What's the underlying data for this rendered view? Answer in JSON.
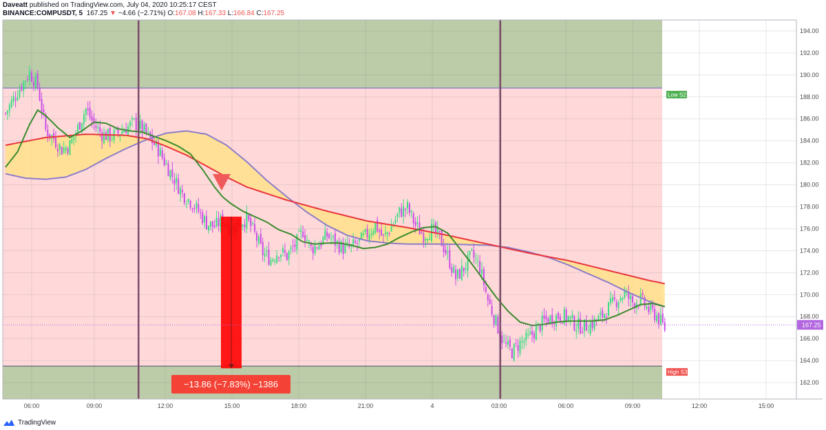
{
  "header": {
    "publisher": "Daveatt",
    "published_text": "published on TradingView.com, July 04, 2020 10:25:17 CEST",
    "symbol": "BINANCE:COMPUSDT, 5",
    "last": "167.25",
    "change": "−4.66 (−2.71%)",
    "o_label": "O:",
    "o_value": "167.08",
    "h_label": "H:",
    "h_value": "167.33",
    "l_label": "L:",
    "l_value": "166.84",
    "c_label": "C:",
    "c_value": "167.25"
  },
  "footer": {
    "brand": "TradingView"
  },
  "colors": {
    "green_zone": "#bccba8",
    "pink_zone": "#ffd9d9",
    "bull": "#3ddc84",
    "bear": "#c94ce6",
    "red_ma": "#e8323c",
    "purple_ma": "#8c7cc9",
    "green_ma": "#3a8a2e",
    "fill": "#ffe08a",
    "session_line": "#7b4a6a"
  },
  "chart_data": {
    "type": "candlestick",
    "ylim": [
      160.5,
      195
    ],
    "y_ticks": [
      "194.00",
      "192.00",
      "190.00",
      "188.00",
      "186.00",
      "184.00",
      "182.00",
      "180.00",
      "178.00",
      "176.00",
      "174.00",
      "172.00",
      "170.00",
      "168.00",
      "166.00",
      "164.00",
      "162.00"
    ],
    "x_ticks": [
      "06:00",
      "09:00",
      "12:00",
      "15:00",
      "18:00",
      "21:00",
      "4",
      "03:00",
      "06:00",
      "09:00",
      "12:00",
      "15:00"
    ],
    "last_price": "167.25",
    "levels": [
      {
        "name": "Low S2",
        "value": 188.8
      },
      {
        "name": "High S3",
        "value": 163.5
      }
    ],
    "measure": {
      "text": "−13.86 (−7.83%) −1386",
      "from": 177.1,
      "to": 163.3,
      "time_label": "15:00"
    },
    "signal": {
      "type": "sell",
      "price": 180.1
    },
    "price_path": [
      [
        0,
        186.5
      ],
      [
        6,
        188.5
      ],
      [
        12,
        190.2
      ],
      [
        16,
        189
      ],
      [
        20,
        185
      ],
      [
        24,
        184.2
      ],
      [
        28,
        183.2
      ],
      [
        32,
        183.6
      ],
      [
        36,
        185.2
      ],
      [
        40,
        186.9
      ],
      [
        44,
        185.5
      ],
      [
        48,
        184.6
      ],
      [
        52,
        184.4
      ],
      [
        56,
        184.7
      ],
      [
        60,
        185.2
      ],
      [
        64,
        185.6
      ],
      [
        68,
        185.1
      ],
      [
        72,
        184.2
      ],
      [
        76,
        183.2
      ],
      [
        80,
        181.8
      ],
      [
        84,
        180.5
      ],
      [
        88,
        179.2
      ],
      [
        92,
        178.5
      ],
      [
        96,
        177.6
      ],
      [
        100,
        176.5
      ],
      [
        104,
        176.2
      ],
      [
        108,
        176.8
      ],
      [
        112,
        176
      ],
      [
        116,
        176.5
      ],
      [
        120,
        176.9
      ],
      [
        124,
        175.5
      ],
      [
        128,
        173.8
      ],
      [
        132,
        173.2
      ],
      [
        136,
        174
      ],
      [
        140,
        173.5
      ],
      [
        144,
        174.5
      ],
      [
        148,
        175.8
      ],
      [
        152,
        174.2
      ],
      [
        156,
        174.6
      ],
      [
        160,
        175.4
      ],
      [
        164,
        174.8
      ],
      [
        168,
        174.2
      ],
      [
        172,
        174.3
      ],
      [
        176,
        174.8
      ],
      [
        180,
        175.5
      ],
      [
        184,
        176.4
      ],
      [
        188,
        175.1
      ],
      [
        192,
        176.2
      ],
      [
        196,
        177.5
      ],
      [
        200,
        177.9
      ],
      [
        204,
        176.3
      ],
      [
        208,
        175.4
      ],
      [
        212,
        175.9
      ],
      [
        216,
        175.2
      ],
      [
        220,
        173.5
      ],
      [
        224,
        171.5
      ],
      [
        228,
        172.4
      ],
      [
        232,
        173.6
      ],
      [
        236,
        172.5
      ],
      [
        240,
        169.5
      ],
      [
        244,
        167.5
      ],
      [
        248,
        165.5
      ],
      [
        252,
        164.8
      ],
      [
        256,
        165.6
      ],
      [
        260,
        166
      ],
      [
        264,
        166.8
      ],
      [
        268,
        167.6
      ],
      [
        272,
        167.9
      ],
      [
        276,
        168.1
      ],
      [
        280,
        167.9
      ],
      [
        284,
        167.2
      ],
      [
        288,
        167.1
      ],
      [
        292,
        167.4
      ],
      [
        296,
        167.9
      ],
      [
        300,
        168.8
      ],
      [
        304,
        169.5
      ],
      [
        308,
        170.1
      ],
      [
        312,
        169.3
      ],
      [
        316,
        169.5
      ],
      [
        320,
        168.6
      ],
      [
        324,
        168.1
      ],
      [
        328,
        166.9
      ]
    ],
    "red_ma": [
      [
        0,
        183.6
      ],
      [
        20,
        184.3
      ],
      [
        40,
        184.6
      ],
      [
        60,
        184.5
      ],
      [
        70,
        184.2
      ],
      [
        80,
        183.5
      ],
      [
        90,
        182.7
      ],
      [
        100,
        181.7
      ],
      [
        110,
        180.7
      ],
      [
        120,
        179.8
      ],
      [
        140,
        178.6
      ],
      [
        160,
        177.6
      ],
      [
        180,
        176.7
      ],
      [
        200,
        176.1
      ],
      [
        220,
        175.4
      ],
      [
        240,
        174.6
      ],
      [
        260,
        173.8
      ],
      [
        280,
        173.1
      ],
      [
        300,
        172.2
      ],
      [
        320,
        171.3
      ],
      [
        328,
        171
      ]
    ],
    "purple_ma": [
      [
        0,
        181
      ],
      [
        10,
        180.6
      ],
      [
        20,
        180.5
      ],
      [
        30,
        180.7
      ],
      [
        40,
        181.4
      ],
      [
        50,
        182.4
      ],
      [
        60,
        183.3
      ],
      [
        70,
        184.1
      ],
      [
        80,
        184.7
      ],
      [
        90,
        184.9
      ],
      [
        100,
        184.6
      ],
      [
        110,
        183.6
      ],
      [
        120,
        182.1
      ],
      [
        130,
        180.4
      ],
      [
        140,
        178.9
      ],
      [
        150,
        177.5
      ],
      [
        160,
        176.3
      ],
      [
        170,
        175.4
      ],
      [
        180,
        174.9
      ],
      [
        190,
        174.7
      ],
      [
        200,
        174.6
      ],
      [
        220,
        174.6
      ],
      [
        240,
        174.5
      ],
      [
        250,
        174.3
      ],
      [
        260,
        173.9
      ],
      [
        270,
        173.4
      ],
      [
        280,
        172.7
      ],
      [
        290,
        171.9
      ],
      [
        300,
        171.1
      ],
      [
        310,
        170.2
      ],
      [
        320,
        169.4
      ],
      [
        328,
        168.9
      ]
    ],
    "green_ma": [
      [
        0,
        181.6
      ],
      [
        6,
        183
      ],
      [
        12,
        185.5
      ],
      [
        16,
        186.8
      ],
      [
        20,
        186.3
      ],
      [
        26,
        185.2
      ],
      [
        32,
        184.3
      ],
      [
        38,
        184.9
      ],
      [
        44,
        185.7
      ],
      [
        50,
        185.6
      ],
      [
        56,
        185.1
      ],
      [
        62,
        184.9
      ],
      [
        68,
        184.8
      ],
      [
        74,
        184.4
      ],
      [
        80,
        184
      ],
      [
        86,
        183.5
      ],
      [
        92,
        182.8
      ],
      [
        98,
        181.4
      ],
      [
        104,
        179.8
      ],
      [
        108,
        178.9
      ],
      [
        112,
        178.3
      ],
      [
        118,
        177.6
      ],
      [
        124,
        177.1
      ],
      [
        130,
        176.6
      ],
      [
        136,
        175.9
      ],
      [
        142,
        175.5
      ],
      [
        148,
        174.8
      ],
      [
        154,
        174.6
      ],
      [
        160,
        174.7
      ],
      [
        166,
        174.7
      ],
      [
        172,
        174.5
      ],
      [
        178,
        174.2
      ],
      [
        184,
        174.3
      ],
      [
        190,
        174.6
      ],
      [
        196,
        175.2
      ],
      [
        202,
        175.7
      ],
      [
        208,
        176.1
      ],
      [
        214,
        176.2
      ],
      [
        220,
        175.6
      ],
      [
        226,
        174.2
      ],
      [
        232,
        172.8
      ],
      [
        238,
        171.3
      ],
      [
        244,
        169.8
      ],
      [
        250,
        168.5
      ],
      [
        256,
        167.5
      ],
      [
        262,
        167.2
      ],
      [
        268,
        167.3
      ],
      [
        274,
        167.5
      ],
      [
        280,
        167.6
      ],
      [
        286,
        167.6
      ],
      [
        292,
        167.6
      ],
      [
        298,
        167.7
      ],
      [
        304,
        168.1
      ],
      [
        310,
        168.6
      ],
      [
        316,
        169.1
      ],
      [
        322,
        169.2
      ],
      [
        328,
        168.9
      ]
    ],
    "session_markers": [
      {
        "bar": 72
      },
      {
        "bar": 252
      }
    ]
  }
}
